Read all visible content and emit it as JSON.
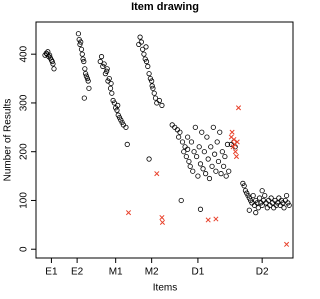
{
  "chart_data": {
    "type": "scatter",
    "title": "Item drawing",
    "x_label": "Items",
    "y_label": "Number of Results",
    "xlim": [
      0,
      100
    ],
    "ylim": [
      -18,
      466
    ],
    "xticks": [
      {
        "value": 6,
        "label": "E1"
      },
      {
        "value": 16,
        "label": "E2"
      },
      {
        "value": 31,
        "label": "M1"
      },
      {
        "value": 45,
        "label": "M2"
      },
      {
        "value": 63,
        "label": "D1"
      },
      {
        "value": 88,
        "label": "D2"
      }
    ],
    "yticks": [
      0,
      100,
      200,
      300,
      400
    ],
    "series": [
      {
        "color": "#000000",
        "marker": "circle",
        "x": [
          3.5,
          4,
          4.3,
          4.6,
          5,
          5.3,
          5.6,
          6,
          6.3,
          6.6,
          7,
          16.5,
          16.8,
          17.1,
          17.4,
          17.7,
          18,
          18.3,
          18.6,
          19,
          19.3,
          19.6,
          20,
          20.3,
          18.8,
          20.6,
          25,
          25.5,
          26,
          26.5,
          27,
          27.5,
          28,
          28.5,
          29,
          29.5,
          30,
          30.5,
          31,
          31.5,
          32,
          32.5,
          33,
          33.5,
          34,
          35,
          35.5,
          27.7,
          29.2,
          31.8,
          40,
          40.5,
          41,
          41.5,
          42,
          42.5,
          43,
          43.5,
          44,
          44.5,
          45,
          45.5,
          46,
          46.5,
          47,
          48,
          49,
          44,
          42.8,
          45.2,
          53,
          54,
          55,
          55.5,
          56,
          57,
          57.5,
          58,
          58.5,
          59,
          59.5,
          60,
          60.5,
          61,
          61.5,
          62,
          62.5,
          63,
          63.5,
          64,
          64.5,
          65,
          65.5,
          66,
          66.5,
          67,
          67.5,
          68,
          68.5,
          69,
          69.5,
          70,
          70.5,
          71,
          71.5,
          72,
          72.5,
          73,
          73.5,
          74,
          74.5,
          75,
          56.5,
          64,
          59,
          76,
          77,
          77.5,
          80.5,
          81,
          81.5,
          82,
          82.5,
          83,
          83.5,
          84,
          84.5,
          85,
          85.5,
          86,
          86.5,
          87,
          87.5,
          88,
          88.5,
          89,
          89.5,
          90,
          90.5,
          91,
          91.5,
          92,
          92.5,
          93,
          93.5,
          94,
          94.5,
          95,
          95.5,
          96,
          96.5,
          97,
          97.5,
          98,
          98.5,
          83,
          85.5,
          88
        ],
        "y": [
          398,
          402,
          400,
          405,
          395,
          398,
          392,
          388,
          385,
          380,
          370,
          442,
          430,
          420,
          425,
          410,
          400,
          390,
          385,
          370,
          360,
          355,
          350,
          345,
          310,
          330,
          385,
          395,
          375,
          380,
          360,
          365,
          345,
          350,
          330,
          320,
          305,
          300,
          290,
          285,
          275,
          270,
          265,
          260,
          255,
          250,
          215,
          370,
          340,
          295,
          420,
          435,
          425,
          410,
          400,
          390,
          385,
          375,
          360,
          350,
          345,
          330,
          320,
          310,
          300,
          305,
          295,
          185,
          415,
          335,
          255,
          250,
          245,
          230,
          240,
          220,
          200,
          210,
          190,
          230,
          180,
          170,
          220,
          160,
          200,
          250,
          190,
          150,
          210,
          175,
          240,
          165,
          200,
          155,
          230,
          185,
          145,
          210,
          170,
          250,
          195,
          160,
          220,
          180,
          240,
          155,
          200,
          170,
          190,
          150,
          215,
          160,
          100,
          82,
          205,
          215,
          220,
          210,
          135,
          130,
          120,
          115,
          110,
          105,
          100,
          95,
          110,
          90,
          100,
          95,
          85,
          105,
          95,
          90,
          100,
          110,
          95,
          85,
          100,
          90,
          105,
          95,
          85,
          100,
          90,
          95,
          105,
          90,
          100,
          95,
          85,
          100,
          110,
          95,
          90,
          80,
          75,
          120
        ]
      },
      {
        "color": "#e8402a",
        "marker": "x",
        "x": [
          36,
          47,
          49,
          49.2,
          67,
          70,
          76,
          76.3,
          76.7,
          77,
          77.3,
          77.6,
          78,
          78.3,
          78.8,
          97.5
        ],
        "y": [
          75,
          155,
          65,
          55,
          60,
          62,
          230,
          240,
          210,
          225,
          215,
          200,
          190,
          220,
          290,
          10
        ]
      }
    ]
  }
}
